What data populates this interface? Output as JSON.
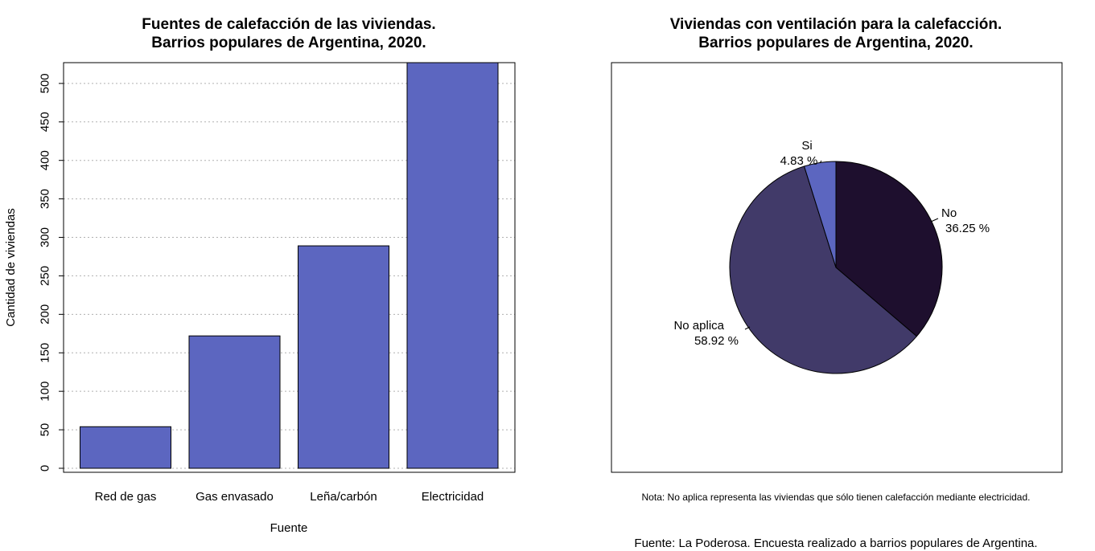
{
  "chart_data": [
    {
      "type": "bar",
      "title_lines": [
        "Fuentes de calefacción de las viviendas.",
        "Barrios populares de Argentina, 2020."
      ],
      "xlabel": "Fuente",
      "ylabel": "Cantidad de viviendas",
      "categories": [
        "Red de gas",
        "Gas envasado",
        "Leña/carbón",
        "Electricidad"
      ],
      "values": [
        54,
        172,
        289,
        527
      ],
      "ylim": [
        0,
        527
      ],
      "yticks": [
        0,
        50,
        100,
        150,
        200,
        250,
        300,
        350,
        400,
        450,
        500
      ],
      "grid": "horizontal dotted",
      "bar_color": "#5C66C0"
    },
    {
      "type": "pie",
      "title_lines": [
        "Viviendas con ventilación para la calefacción.",
        "Barrios populares de Argentina, 2020."
      ],
      "slices": [
        {
          "label": "No",
          "percent_text": "36.25 %",
          "value": 36.25,
          "color": "#1E0F2E"
        },
        {
          "label": "No aplica",
          "percent_text": "58.92 %",
          "value": 58.92,
          "color": "#413A69"
        },
        {
          "label": "Si",
          "percent_text": "4.83 %",
          "value": 4.83,
          "color": "#5C66C0"
        }
      ],
      "note": "Nota: No aplica representa las viviendas que sólo tienen calefacción mediante electricidad.",
      "source": "Fuente: La Poderosa. Encuesta realizado a barrios populares de Argentina."
    }
  ]
}
